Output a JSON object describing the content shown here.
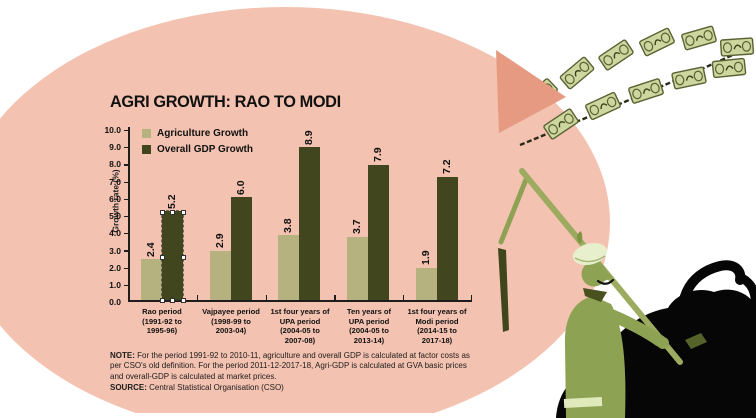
{
  "title": "AGRI GROWTH: RAO TO MODI",
  "legend": {
    "agri": "Agriculture Growth",
    "gdp": "Overall GDP Growth"
  },
  "axis": {
    "ylabel": "Growth rate (%)",
    "yticks": [
      "10.0",
      "9.0",
      "8.0",
      "7.0",
      "6.0",
      "5.0",
      "4.0",
      "3.0",
      "2.0",
      "1.0",
      "0.0"
    ]
  },
  "labels": {
    "agri": [
      "2.4",
      "2.9",
      "3.8",
      "3.7",
      "1.9"
    ],
    "gdp": [
      "5.2",
      "6.0",
      "8.9",
      "7.9",
      "7.2"
    ]
  },
  "categories": [
    "Rao period\n(1991-92 to\n1995-96)",
    "Vajpayee period\n(1998-99 to\n2003-04)",
    "1st four years of\nUPA period\n(2004-05 to\n2007-08)",
    "Ten years of\nUPA period\n(2004-05 to\n2013-14)",
    "1st four years of\nModi period\n(2014-15 to\n2017-18)"
  ],
  "note": {
    "label": "NOTE:",
    "text": " For the period 1991-92 to 2010-11, agriculture and overall GDP is calculated at factor costs as per CSO's old definition. For the period 2011-12-2017-18, Agri-GDP is calculated at GVA basic prices and overall-GDP is calculated at market prices."
  },
  "source": {
    "label": "SOURCE:",
    "text": " Central Statistical Organisation (CSO)"
  },
  "colors": {
    "circle": "#f4c2b0",
    "agri_bar": "#b5b280",
    "gdp_bar": "#42461f",
    "triangle": "#e69a81",
    "banknote": "#ccd69e",
    "farmer_green": "#8ea254",
    "bull_black": "#060606"
  },
  "chart_data": {
    "type": "bar",
    "title": "AGRI GROWTH: RAO TO MODI",
    "xlabel": "",
    "ylabel": "Growth rate (%)",
    "ylim": [
      0,
      10
    ],
    "ytick_step": 1.0,
    "grid": false,
    "legend_position": "top-left inside plot",
    "categories": [
      "Rao period (1991-92 to 1995-96)",
      "Vajpayee period (1998-99 to 2003-04)",
      "1st four years of UPA period (2004-05 to 2007-08)",
      "Ten years of UPA period (2004-05 to 2013-14)",
      "1st four years of Modi period (2014-15 to 2017-18)"
    ],
    "series": [
      {
        "name": "Agriculture Growth",
        "color": "#b5b280",
        "values": [
          2.4,
          2.9,
          3.8,
          3.7,
          1.9
        ]
      },
      {
        "name": "Overall GDP Growth",
        "color": "#42461f",
        "values": [
          5.2,
          6.0,
          8.9,
          7.9,
          7.2
        ]
      }
    ],
    "selected_bar": {
      "series": "Overall GDP Growth",
      "category_index": 0
    }
  }
}
